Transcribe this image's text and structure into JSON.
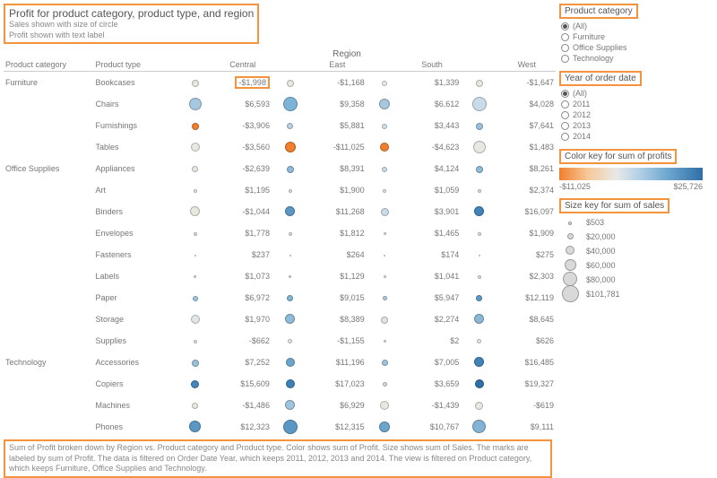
{
  "title": "Profit for product category, product type, and region",
  "subtitle1": "Sales shown with size of circle",
  "subtitle2": "Profit shown with text label",
  "region_header": "Region",
  "columns": {
    "cat": "Product category",
    "type": "Product type",
    "regions": [
      "Central",
      "East",
      "South",
      "West"
    ]
  },
  "caption": "Sum of Profit broken down by Region vs. Product category and Product type.  Color shows sum of Profit.  Size shows sum of Sales.  The marks are labeled by sum of Profit. The data is filtered on Order Date Year, which keeps 2011, 2012, 2013 and 2014. The view is filtered on Product category, which keeps Furniture, Office Supplies and Technology.",
  "categories": [
    {
      "name": "Furniture",
      "rows": [
        {
          "type": "Bookcases",
          "cells": [
            {
              "v": "-$1,998",
              "s": 8,
              "c": "#e8e8e0"
            },
            {
              "v": "-$1,168",
              "s": 8,
              "c": "#e8e8e0"
            },
            {
              "v": "$1,339",
              "s": 6,
              "c": "#e8e8e0"
            },
            {
              "v": "-$1,647",
              "s": 8,
              "c": "#e8e8e0"
            }
          ],
          "hl": 0
        },
        {
          "type": "Chairs",
          "cells": [
            {
              "v": "$6,593",
              "s": 14,
              "c": "#a6c8df"
            },
            {
              "v": "$9,358",
              "s": 16,
              "c": "#7db4d6"
            },
            {
              "v": "$6,612",
              "s": 12,
              "c": "#a6c8df"
            },
            {
              "v": "$4,028",
              "s": 16,
              "c": "#c8dbe8"
            }
          ]
        },
        {
          "type": "Furnishings",
          "cells": [
            {
              "v": "-$3,906",
              "s": 8,
              "c": "#f07f2e"
            },
            {
              "v": "$5,881",
              "s": 7,
              "c": "#b8d2e4"
            },
            {
              "v": "$3,443",
              "s": 6,
              "c": "#cfdfea"
            },
            {
              "v": "$7,641",
              "s": 8,
              "c": "#9ac1dc"
            }
          ]
        },
        {
          "type": "Tables",
          "cells": [
            {
              "v": "-$3,560",
              "s": 10,
              "c": "#e8e8e0"
            },
            {
              "v": "-$11,025",
              "s": 12,
              "c": "#f07f2e"
            },
            {
              "v": "-$4,623",
              "s": 10,
              "c": "#f07f2e"
            },
            {
              "v": "$1,483",
              "s": 14,
              "c": "#e8e8e0"
            }
          ]
        }
      ]
    },
    {
      "name": "Office Supplies",
      "rows": [
        {
          "type": "Appliances",
          "cells": [
            {
              "v": "-$2,639",
              "s": 7,
              "c": "#e8e8e0"
            },
            {
              "v": "$8,391",
              "s": 8,
              "c": "#8fbad8"
            },
            {
              "v": "$4,124",
              "s": 6,
              "c": "#c8dbe8"
            },
            {
              "v": "$8,261",
              "s": 8,
              "c": "#8fbad8"
            }
          ]
        },
        {
          "type": "Art",
          "cells": [
            {
              "v": "$1,195",
              "s": 4,
              "c": "#e8e8e0"
            },
            {
              "v": "$1,900",
              "s": 4,
              "c": "#e0e6ea"
            },
            {
              "v": "$1,059",
              "s": 4,
              "c": "#e8e8e0"
            },
            {
              "v": "$2,374",
              "s": 4,
              "c": "#dde4ea"
            }
          ]
        },
        {
          "type": "Binders",
          "cells": [
            {
              "v": "-$1,044",
              "s": 11,
              "c": "#e8e8e0"
            },
            {
              "v": "$11,268",
              "s": 11,
              "c": "#5a97c4"
            },
            {
              "v": "$3,901",
              "s": 9,
              "c": "#cbdce9"
            },
            {
              "v": "$16,097",
              "s": 11,
              "c": "#3f83b8"
            }
          ]
        },
        {
          "type": "Envelopes",
          "cells": [
            {
              "v": "$1,778",
              "s": 4,
              "c": "#e0e6ea"
            },
            {
              "v": "$1,812",
              "s": 4,
              "c": "#e0e6ea"
            },
            {
              "v": "$1,465",
              "s": 3,
              "c": "#e0e6ea"
            },
            {
              "v": "$1,909",
              "s": 4,
              "c": "#e0e6ea"
            }
          ]
        },
        {
          "type": "Fasteners",
          "cells": [
            {
              "v": "$237",
              "s": 2,
              "c": "#e8e8e0"
            },
            {
              "v": "$264",
              "s": 2,
              "c": "#e8e8e0"
            },
            {
              "v": "$174",
              "s": 2,
              "c": "#e8e8e0"
            },
            {
              "v": "$275",
              "s": 2,
              "c": "#e8e8e0"
            }
          ]
        },
        {
          "type": "Labels",
          "cells": [
            {
              "v": "$1,073",
              "s": 3,
              "c": "#e0e6ea"
            },
            {
              "v": "$1,129",
              "s": 3,
              "c": "#e0e6ea"
            },
            {
              "v": "$1,041",
              "s": 3,
              "c": "#e0e6ea"
            },
            {
              "v": "$2,303",
              "s": 4,
              "c": "#dde4ea"
            }
          ]
        },
        {
          "type": "Paper",
          "cells": [
            {
              "v": "$6,972",
              "s": 6,
              "c": "#9ec4de"
            },
            {
              "v": "$9,015",
              "s": 7,
              "c": "#85b4d5"
            },
            {
              "v": "$5,947",
              "s": 5,
              "c": "#aecce2"
            },
            {
              "v": "$12,119",
              "s": 7,
              "c": "#5e9ac6"
            }
          ]
        },
        {
          "type": "Storage",
          "cells": [
            {
              "v": "$1,970",
              "s": 10,
              "c": "#e0e6ea"
            },
            {
              "v": "$8,389",
              "s": 11,
              "c": "#8fbad8"
            },
            {
              "v": "$2,274",
              "s": 8,
              "c": "#dde4ea"
            },
            {
              "v": "$8,645",
              "s": 11,
              "c": "#8bb7d6"
            }
          ]
        },
        {
          "type": "Supplies",
          "cells": [
            {
              "v": "-$662",
              "s": 4,
              "c": "#e8e8e0"
            },
            {
              "v": "-$1,155",
              "s": 5,
              "c": "#e8e8e0"
            },
            {
              "v": "$2",
              "s": 3,
              "c": "#e8e8e0"
            },
            {
              "v": "$626",
              "s": 5,
              "c": "#e8e8e0"
            }
          ]
        }
      ]
    },
    {
      "name": "Technology",
      "rows": [
        {
          "type": "Accessories",
          "cells": [
            {
              "v": "$7,252",
              "s": 8,
              "c": "#9ac1dc"
            },
            {
              "v": "$11,196",
              "s": 10,
              "c": "#6ba5ce"
            },
            {
              "v": "$7,005",
              "s": 7,
              "c": "#9ec4de"
            },
            {
              "v": "$16,485",
              "s": 11,
              "c": "#3f83b8"
            }
          ]
        },
        {
          "type": "Copiers",
          "cells": [
            {
              "v": "$15,609",
              "s": 9,
              "c": "#4486ba"
            },
            {
              "v": "$17,023",
              "s": 10,
              "c": "#3c81b6"
            },
            {
              "v": "$3,659",
              "s": 5,
              "c": "#cbdce9"
            },
            {
              "v": "$19,327",
              "s": 10,
              "c": "#2f6fa8"
            }
          ]
        },
        {
          "type": "Machines",
          "cells": [
            {
              "v": "-$1,486",
              "s": 7,
              "c": "#e8e8e0"
            },
            {
              "v": "$6,929",
              "s": 11,
              "c": "#9ec4de"
            },
            {
              "v": "-$1,439",
              "s": 10,
              "c": "#e8e8e0"
            },
            {
              "v": "-$619",
              "s": 9,
              "c": "#e8e8e0"
            }
          ]
        },
        {
          "type": "Phones",
          "cells": [
            {
              "v": "$12,323",
              "s": 13,
              "c": "#5a97c4"
            },
            {
              "v": "$12,315",
              "s": 16,
              "c": "#5a97c4"
            },
            {
              "v": "$10,767",
              "s": 12,
              "c": "#6ba5ce"
            },
            {
              "v": "$9,111",
              "s": 15,
              "c": "#82b2d4"
            }
          ]
        }
      ]
    }
  ],
  "filters": {
    "category": {
      "label": "Product category",
      "items": [
        "(All)",
        "Furniture",
        "Office Supplies",
        "Technology"
      ],
      "selected": 0
    },
    "year": {
      "label": "Year of order date",
      "items": [
        "(All)",
        "2011",
        "2012",
        "2013",
        "2014"
      ],
      "selected": 0
    }
  },
  "color_key": {
    "label": "Color key for sum of profits",
    "min": "-$11,025",
    "max": "$25,726"
  },
  "size_key": {
    "label": "Size key for sum of sales",
    "items": [
      {
        "s": 4,
        "l": "$503"
      },
      {
        "s": 7,
        "l": "$20,000"
      },
      {
        "s": 10,
        "l": "$40,000"
      },
      {
        "s": 13,
        "l": "$60,000"
      },
      {
        "s": 16,
        "l": "$80,000"
      },
      {
        "s": 19,
        "l": "$101,781"
      }
    ]
  }
}
